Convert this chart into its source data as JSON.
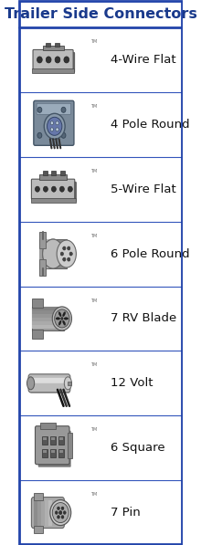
{
  "title": "Trailer Side Connectors",
  "title_color": "#1a3a8c",
  "title_bg": "#ffffff",
  "border_color": "#2244aa",
  "bg_color": "#ffffff",
  "row_divider": "#3355bb",
  "outer_border": "#2244aa",
  "items": [
    {
      "label": "4-Wire Flat"
    },
    {
      "label": "4 Pole Round"
    },
    {
      "label": "5-Wire Flat"
    },
    {
      "label": "6 Pole Round"
    },
    {
      "label": "7 RV Blade"
    },
    {
      "label": "12 Volt"
    },
    {
      "label": "6 Square"
    },
    {
      "label": "7 Pin"
    }
  ],
  "label_color": "#111111",
  "label_fontsize": 9.5,
  "title_fontsize": 11.5,
  "connector_dark": "#555555",
  "connector_mid": "#888888",
  "connector_light": "#bbbbbb",
  "connector_highlight": "#dddddd"
}
